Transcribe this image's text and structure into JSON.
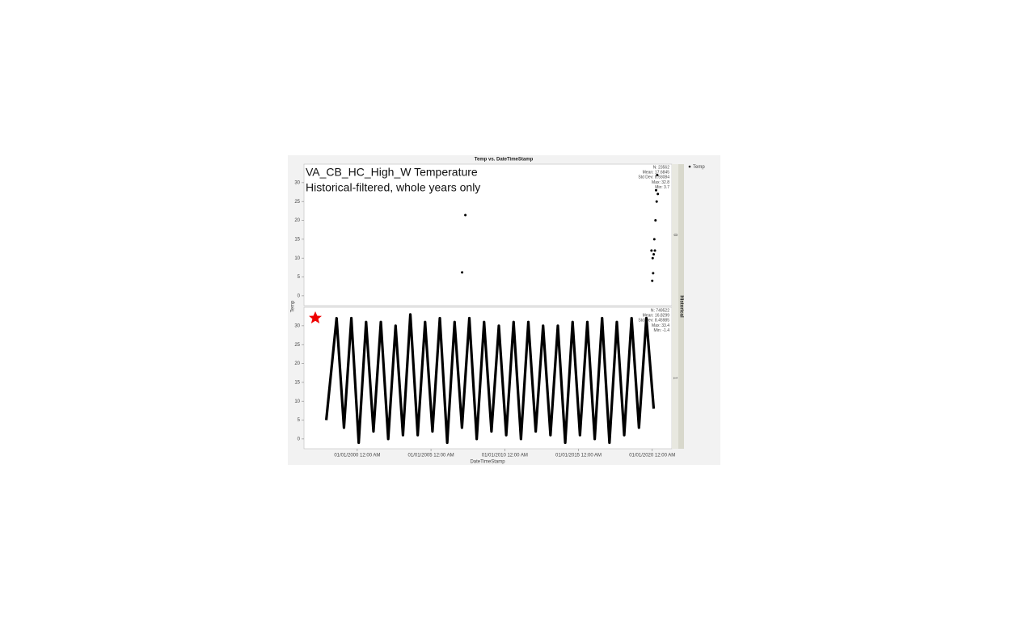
{
  "figure": {
    "title": "Temp vs. DateTimeStamp",
    "ylabel": "Temp",
    "xlabel": "DateTimeStamp",
    "group_label": "Historical",
    "annotations": [
      "VA_CB_HC_High_W Temperature",
      "Historical-filtered, whole years only"
    ]
  },
  "chart_data": [
    {
      "type": "scatter",
      "panel_label": "0",
      "stats": [
        "N: 23562",
        "Mean: 17.6845",
        "Std Dev: 8.93084",
        "Max: 32.8",
        "Min: 3.7"
      ],
      "xlim": [
        1996.39,
        2021.33
      ],
      "ylim": [
        -2.6,
        34.9
      ],
      "yticks": [
        0,
        5,
        10,
        15,
        20,
        25,
        30
      ],
      "series": [
        {
          "name": "Temp",
          "color": "#000000",
          "x": [
            2007.11,
            2007.33,
            2019.95,
            2020.0,
            2020.03,
            2020.06,
            2020.1,
            2020.14,
            2020.18,
            2020.22,
            2020.26,
            2020.3,
            2020.34,
            2020.38
          ],
          "values": [
            6.2,
            21.4,
            12,
            4,
            10,
            6,
            11,
            15,
            12,
            20,
            28,
            25,
            32,
            27
          ]
        }
      ]
    },
    {
      "type": "line",
      "panel_label": "1",
      "stats": [
        "N: 749522",
        "Mean: 16.8299",
        "Std Dev: 8.45985",
        "Max: 33.4",
        "Min: -1.4"
      ],
      "xlim": [
        1996.39,
        2021.33
      ],
      "ylim": [
        -2.6,
        34.9
      ],
      "yticks": [
        0,
        5,
        10,
        15,
        20,
        25,
        30
      ],
      "xticks": [
        {
          "value": 2000,
          "label": "01/01/2000 12:00 AM"
        },
        {
          "value": 2005,
          "label": "01/01/2005 12:00 AM"
        },
        {
          "value": 2010,
          "label": "01/01/2010 12:00 AM"
        },
        {
          "value": 2015,
          "label": "01/01/2015 12:00 AM"
        },
        {
          "value": 2020,
          "label": "01/01/2020 12:00 AM"
        }
      ],
      "series": [
        {
          "name": "Temp",
          "color": "#000000",
          "x": [
            1997.9,
            1998.6,
            1999.1,
            1999.6,
            2000.1,
            2000.6,
            2001.1,
            2001.6,
            2002.1,
            2002.6,
            2003.1,
            2003.6,
            2004.1,
            2004.6,
            2005.1,
            2005.6,
            2006.1,
            2006.6,
            2007.1,
            2007.6,
            2008.1,
            2008.6,
            2009.1,
            2009.6,
            2010.1,
            2010.6,
            2011.1,
            2011.6,
            2012.1,
            2012.6,
            2013.1,
            2013.6,
            2014.1,
            2014.6,
            2015.1,
            2015.6,
            2016.1,
            2016.6,
            2017.1,
            2017.6,
            2018.1,
            2018.6,
            2019.1,
            2019.6,
            2020.1
          ],
          "values": [
            5,
            32,
            3,
            32,
            -1,
            31,
            2,
            31,
            0,
            30,
            1,
            33,
            1,
            31,
            2,
            32,
            -1,
            31,
            3,
            32,
            0,
            31,
            2,
            30,
            1,
            31,
            0,
            31,
            2,
            30,
            1,
            30,
            -1,
            31,
            1,
            31,
            0,
            32,
            -1,
            31,
            1,
            32,
            3,
            32,
            8
          ]
        }
      ]
    }
  ]
}
